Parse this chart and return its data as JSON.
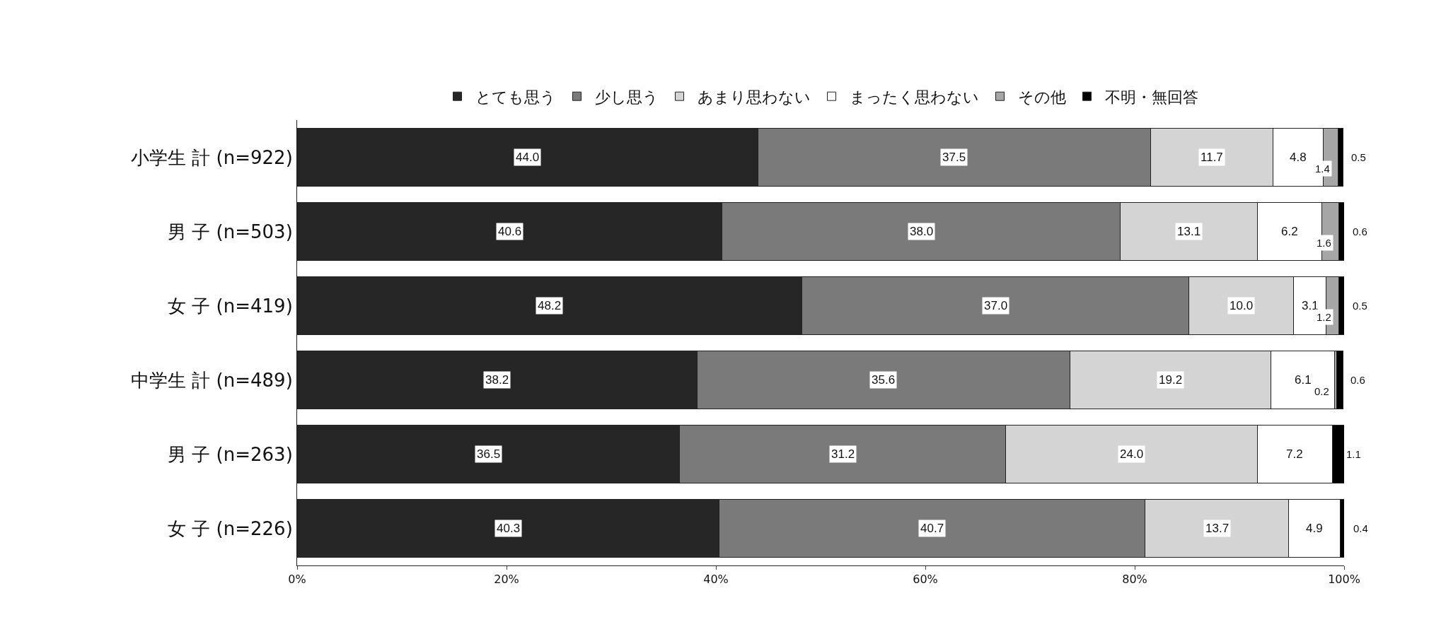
{
  "chart_data": {
    "type": "bar",
    "orientation": "horizontal",
    "stacked": true,
    "categories": [
      "小学生 計 (n=922)",
      "男 子 (n=503)",
      "女 子 (n=419)",
      "中学生 計 (n=489)",
      "男 子 (n=263)",
      "女 子 (n=226)"
    ],
    "series": [
      {
        "name": "とても思う",
        "color": "#262626",
        "values": [
          44.0,
          40.6,
          48.2,
          38.2,
          36.5,
          40.3
        ],
        "value_labels": [
          "44.0",
          "40.6",
          "48.2",
          "38.2",
          "36.5",
          "40.3"
        ]
      },
      {
        "name": "少し思う",
        "color": "#7a7a7a",
        "values": [
          37.5,
          38.0,
          37.0,
          35.6,
          31.2,
          40.7
        ],
        "value_labels": [
          "37.5",
          "38.0",
          "37.0",
          "35.6",
          "31.2",
          "40.7"
        ]
      },
      {
        "name": "あまり思わない",
        "color": "#d4d4d4",
        "values": [
          11.7,
          13.1,
          10.0,
          19.2,
          24.0,
          13.7
        ],
        "value_labels": [
          "11.7",
          "13.1",
          "10.0",
          "19.2",
          "24.0",
          "13.7"
        ]
      },
      {
        "name": "まったく思わない",
        "color": "#ffffff",
        "values": [
          4.8,
          6.2,
          3.1,
          6.1,
          7.2,
          4.9
        ],
        "value_labels": [
          "4.8",
          "6.2",
          "3.1",
          "6.1",
          "7.2",
          "4.9"
        ]
      },
      {
        "name": "その他",
        "color": "#a6a6a6",
        "values": [
          1.4,
          1.6,
          1.2,
          0.2,
          null,
          null
        ],
        "value_labels": [
          "1.4",
          "1.6",
          "1.2",
          "0.2",
          null,
          null
        ]
      },
      {
        "name": "不明・無回答",
        "color": "#000000",
        "values": [
          0.5,
          0.6,
          0.5,
          0.6,
          1.1,
          0.4
        ],
        "value_labels": [
          "0.5",
          "0.6",
          "0.5",
          "0.6",
          "1.1",
          "0.4"
        ]
      }
    ],
    "xlim": [
      0,
      100
    ],
    "xticks": [
      {
        "value": 0,
        "label": "0%"
      },
      {
        "value": 20,
        "label": "20%"
      },
      {
        "value": 40,
        "label": "40%"
      },
      {
        "value": 60,
        "label": "60%"
      },
      {
        "value": 80,
        "label": "80%"
      },
      {
        "value": 100,
        "label": "100%"
      }
    ],
    "grid": false,
    "legend": "top"
  }
}
